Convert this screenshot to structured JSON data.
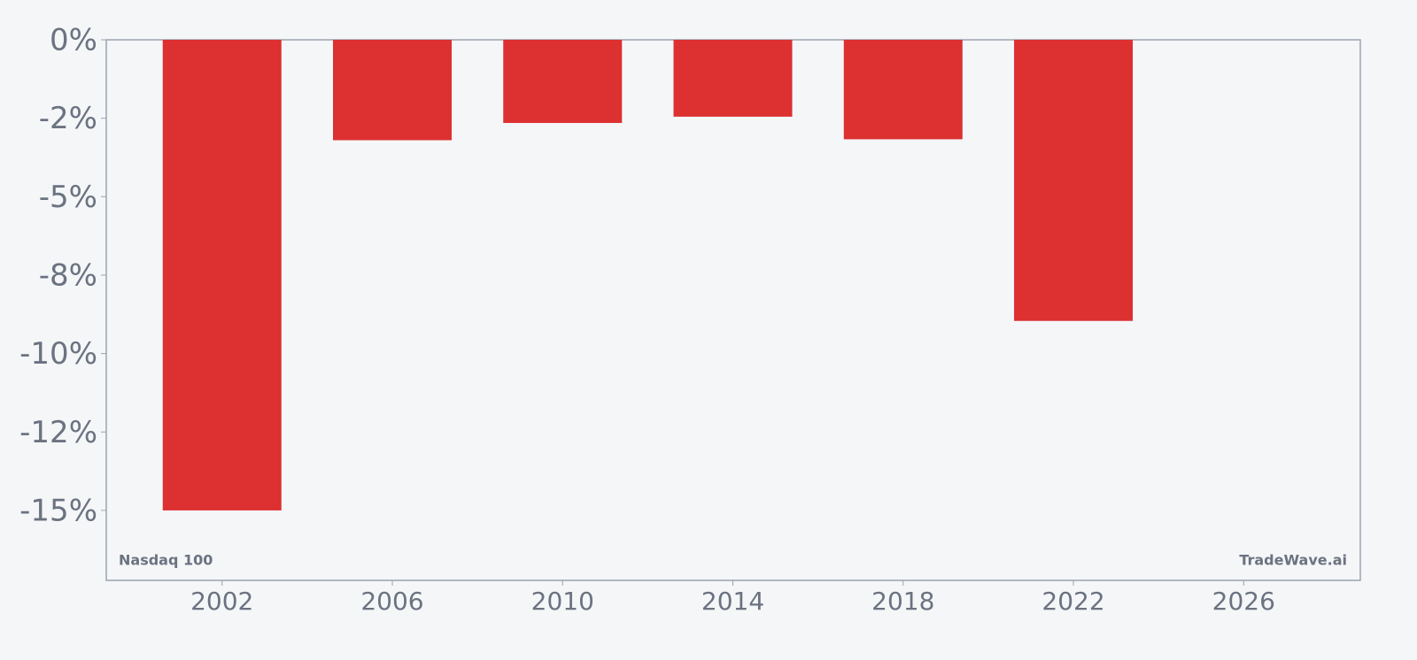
{
  "chart_data": {
    "type": "bar",
    "x": [
      2002,
      2006,
      2010,
      2014,
      2018,
      2022
    ],
    "values": [
      -15.0,
      -3.2,
      -2.65,
      -2.45,
      -3.17,
      -8.96
    ],
    "color": "#dc3031",
    "xlim": [
      1999.28,
      2028.74
    ],
    "xticks": [
      2002,
      2006,
      2010,
      2014,
      2018,
      2022,
      2026
    ],
    "ylim": [
      -17.23,
      0
    ],
    "yticks": [
      {
        "value": 0,
        "label": "0%"
      },
      {
        "value": -2.5,
        "label": "-2%"
      },
      {
        "value": -5,
        "label": "-5%"
      },
      {
        "value": -7.5,
        "label": "-8%"
      },
      {
        "value": -10,
        "label": "-10%"
      },
      {
        "value": -12.5,
        "label": "-12%"
      },
      {
        "value": -15,
        "label": "-15%"
      }
    ],
    "annotations": [
      "Nasdaq 100",
      "TradeWave.ai"
    ]
  }
}
